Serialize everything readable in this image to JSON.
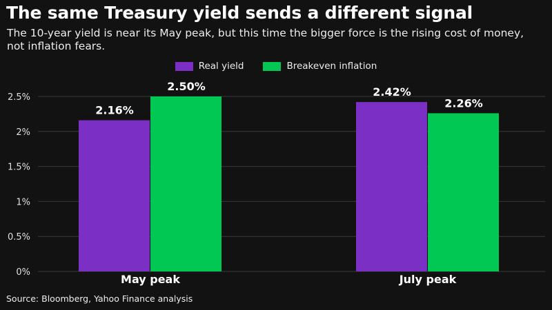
{
  "header": {
    "title": "The same Treasury yield sends a different signal",
    "subtitle": "The 10-year yield is near its May peak, but this time the bigger force is the rising cost of money, not inflation fears."
  },
  "footer": {
    "source": "Source: Bloomberg, Yahoo Finance analysis"
  },
  "chart_data": {
    "type": "bar",
    "title": "The same Treasury yield sends a different signal",
    "subtitle": "The 10-year yield is near its May peak, but this time the bigger force is the rising cost of money, not inflation fears.",
    "categories": [
      "May peak",
      "July peak"
    ],
    "series": [
      {
        "name": "Real yield",
        "color": "#7b2fc4",
        "values": [
          2.16,
          2.42
        ],
        "labels": [
          "2.16%",
          "2.42%"
        ]
      },
      {
        "name": "Breakeven inflation",
        "color": "#00c853",
        "values": [
          2.5,
          2.26
        ],
        "labels": [
          "2.50%",
          "2.26%"
        ]
      }
    ],
    "ylim": [
      0,
      2.5
    ],
    "yticks": [
      0,
      0.5,
      1,
      1.5,
      2,
      2.5
    ],
    "ytick_labels": [
      "0%",
      "0.5%",
      "1%",
      "1.5%",
      "2%",
      "2.5%"
    ],
    "grid": true,
    "legend_position": "top-center",
    "xlabel": "",
    "ylabel": ""
  }
}
